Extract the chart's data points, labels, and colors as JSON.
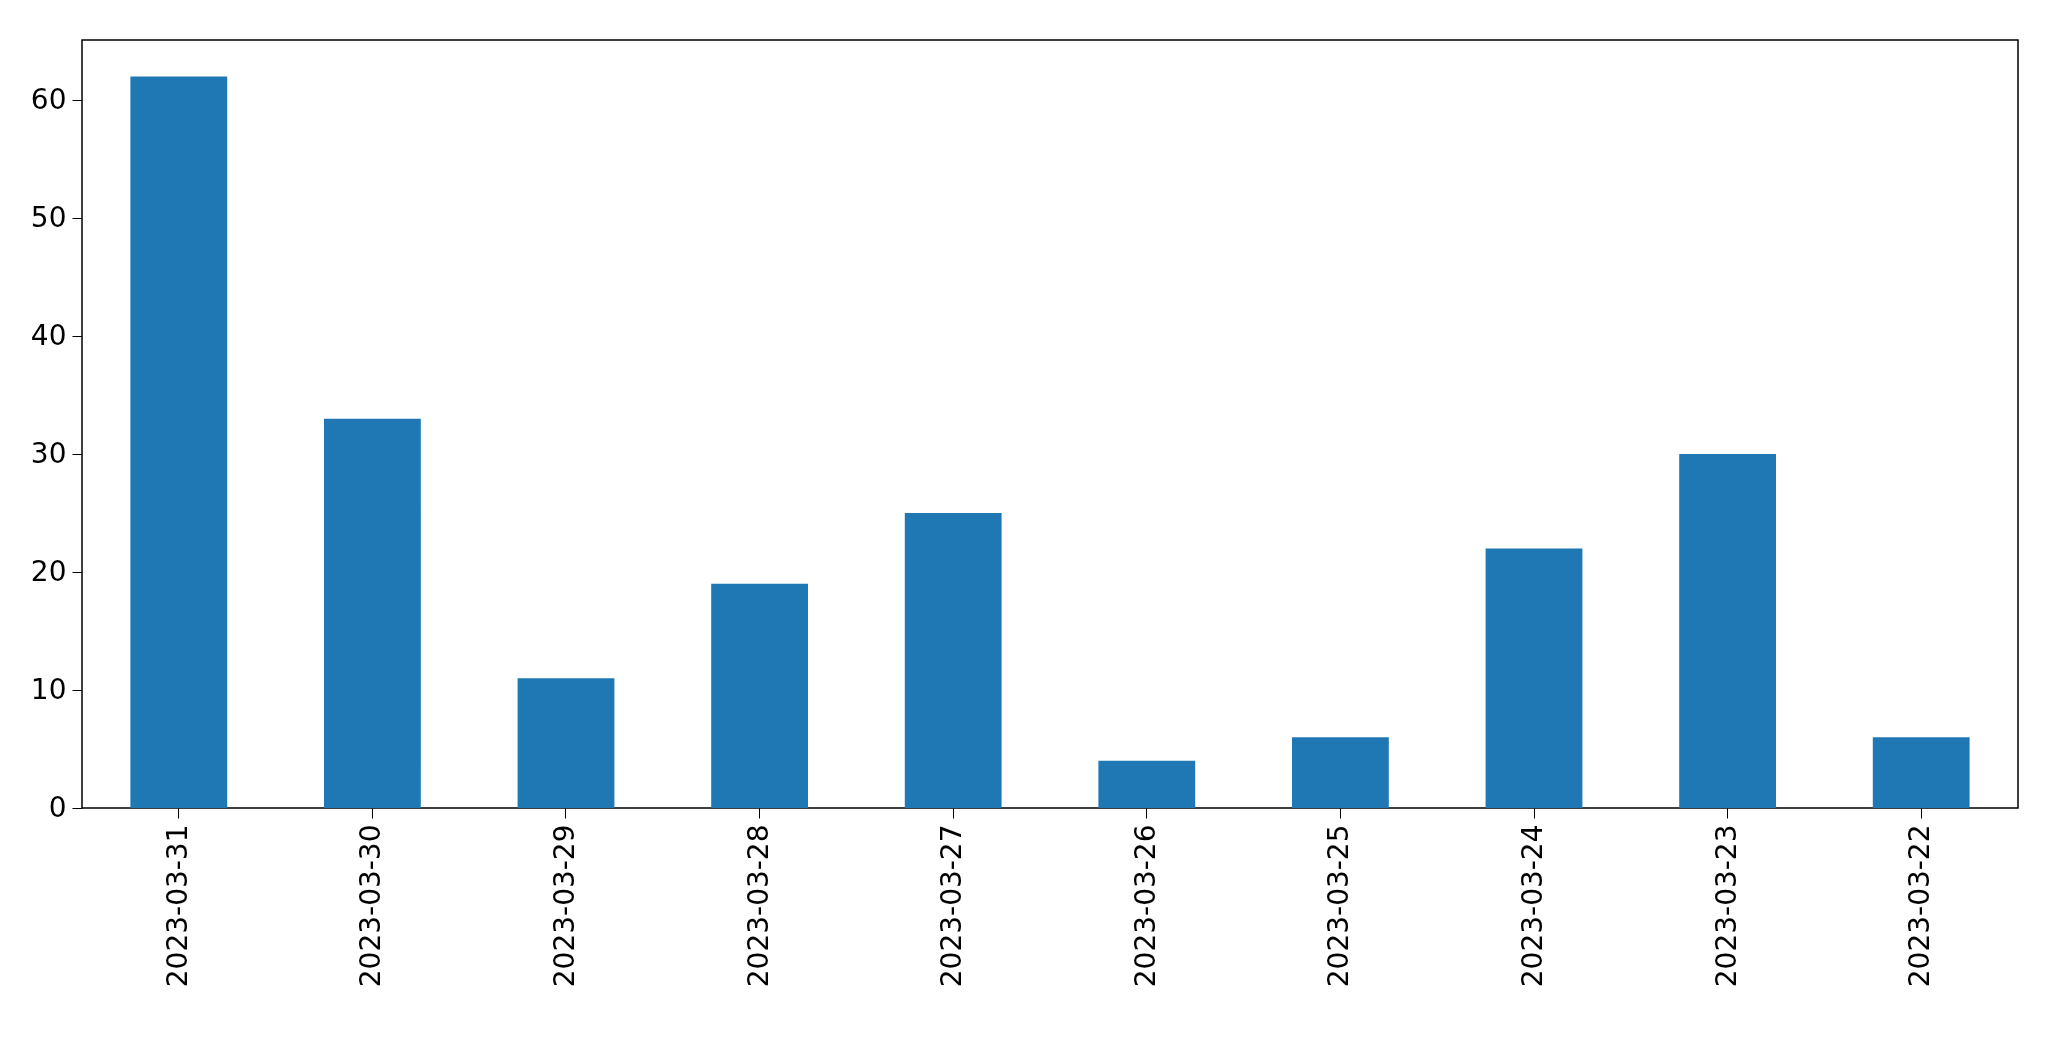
{
  "chart_data": {
    "type": "bar",
    "categories": [
      "2023-03-31",
      "2023-03-30",
      "2023-03-29",
      "2023-03-28",
      "2023-03-27",
      "2023-03-26",
      "2023-03-25",
      "2023-03-24",
      "2023-03-23",
      "2023-03-22"
    ],
    "values": [
      62,
      33,
      11,
      19,
      25,
      4,
      6,
      22,
      30,
      6
    ],
    "color": "#1f77b4",
    "ylim": [
      0,
      65.1
    ],
    "yticks": [
      0,
      10,
      20,
      30,
      40,
      50,
      60
    ],
    "grid": false
  }
}
